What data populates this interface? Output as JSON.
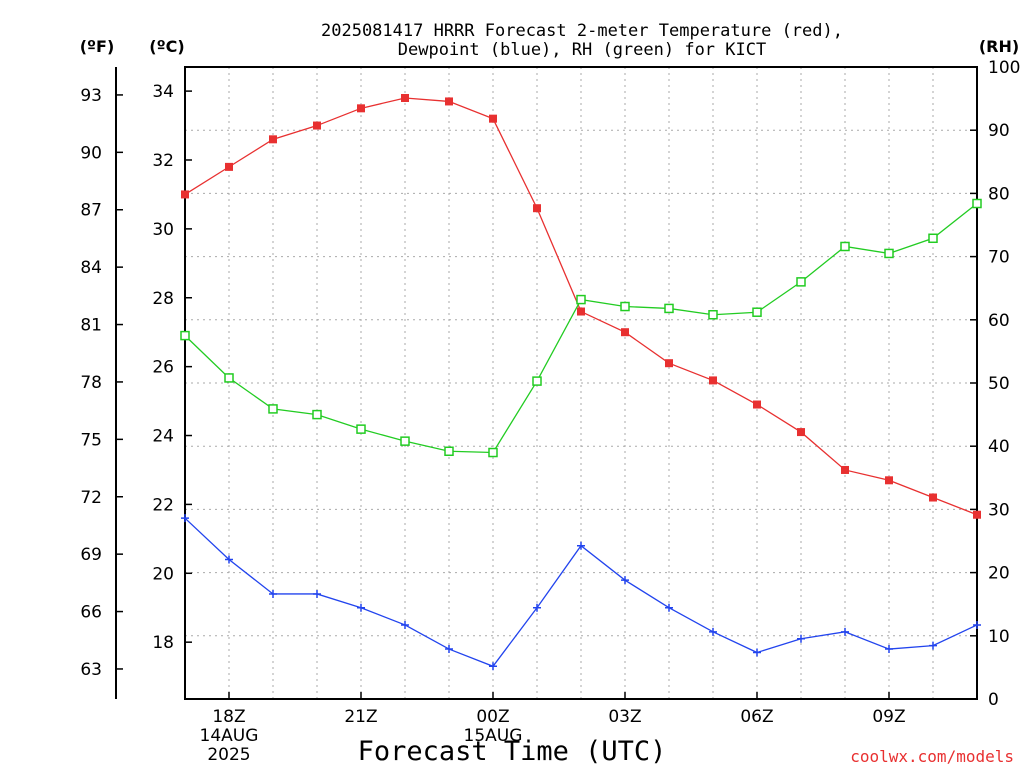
{
  "chart_data": {
    "type": "line",
    "title_line1": "2025081417 HRRR Forecast 2-meter Temperature (red),",
    "title_line2": "Dewpoint (blue), RH (green) for KICT",
    "xlabel": "Forecast Time (UTC)",
    "watermark": "coolwx.com/models",
    "left_unit_f": "(ºF)",
    "left_unit_c": "(ºC)",
    "right_unit": "(RH)",
    "x_hours": [
      17,
      18,
      19,
      20,
      21,
      22,
      23,
      24,
      25,
      26,
      27,
      28,
      29,
      30,
      31,
      32,
      33,
      34,
      35
    ],
    "x_ticks": [
      {
        "hour": 18,
        "label": "18Z",
        "sub1": "14AUG",
        "sub2": "2025"
      },
      {
        "hour": 21,
        "label": "21Z",
        "sub1": "",
        "sub2": ""
      },
      {
        "hour": 24,
        "label": "00Z",
        "sub1": "15AUG",
        "sub2": ""
      },
      {
        "hour": 27,
        "label": "03Z",
        "sub1": "",
        "sub2": ""
      },
      {
        "hour": 30,
        "label": "06Z",
        "sub1": "",
        "sub2": ""
      },
      {
        "hour": 33,
        "label": "09Z",
        "sub1": "",
        "sub2": ""
      }
    ],
    "ylim_c": [
      16.35,
      34.7
    ],
    "y_ticks_c": [
      "18",
      "20",
      "22",
      "24",
      "26",
      "28",
      "30",
      "32",
      "34"
    ],
    "y_ticks_f": [
      "63",
      "66",
      "69",
      "72",
      "75",
      "78",
      "81",
      "84",
      "87",
      "90",
      "93"
    ],
    "ylim_rh": [
      0,
      100
    ],
    "y_ticks_rh": [
      "0",
      "10",
      "20",
      "30",
      "40",
      "50",
      "60",
      "70",
      "80",
      "90",
      "100"
    ],
    "grid": true,
    "series": [
      {
        "name": "Temperature",
        "unit": "C",
        "color": "#e83030",
        "marker": "filled-square",
        "values": [
          31.0,
          31.8,
          32.6,
          33.0,
          33.5,
          33.8,
          33.7,
          33.2,
          30.6,
          27.6,
          27.0,
          26.1,
          25.6,
          24.9,
          24.1,
          23.0,
          22.7,
          22.2,
          21.7
        ]
      },
      {
        "name": "Dewpoint",
        "unit": "C",
        "color": "#2244ee",
        "marker": "plus",
        "values": [
          21.6,
          20.4,
          19.4,
          19.4,
          19.0,
          18.5,
          17.8,
          17.3,
          19.0,
          20.8,
          19.8,
          19.0,
          18.3,
          17.7,
          18.1,
          18.3,
          17.8,
          17.9,
          18.5
        ]
      },
      {
        "name": "RH",
        "unit": "%",
        "color": "#22cc22",
        "marker": "open-square",
        "values": [
          57.5,
          50.8,
          45.9,
          45.0,
          42.7,
          40.8,
          39.2,
          39.0,
          50.3,
          63.2,
          62.1,
          61.8,
          60.8,
          61.2,
          66.0,
          71.6,
          70.5,
          72.9,
          78.4
        ]
      }
    ]
  }
}
